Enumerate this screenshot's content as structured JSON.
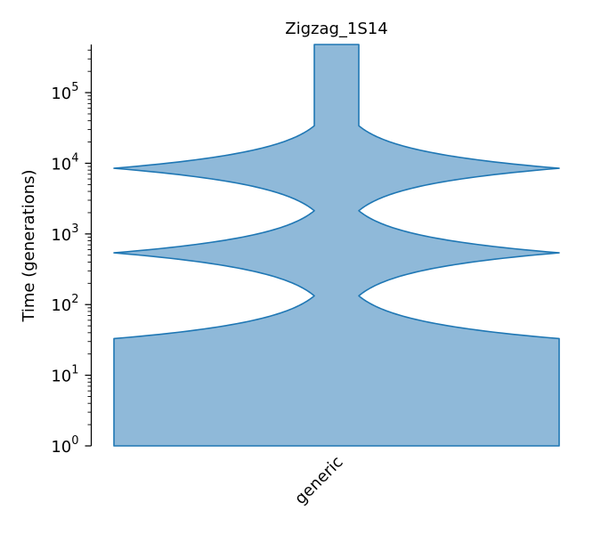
{
  "chart_data": {
    "type": "area",
    "title": "Zigzag_1S14",
    "ylabel": "Time (generations)",
    "xlabel": "",
    "categories": [
      "generic"
    ],
    "y_scale": "log",
    "ylim": [
      1,
      480000
    ],
    "y_ticks": [
      {
        "value": 1,
        "base": "10",
        "exp": "0"
      },
      {
        "value": 10,
        "base": "10",
        "exp": "1"
      },
      {
        "value": 100,
        "base": "10",
        "exp": "2"
      },
      {
        "value": 1000,
        "base": "10",
        "exp": "3"
      },
      {
        "value": 10000,
        "base": "10",
        "exp": "4"
      },
      {
        "value": 100000,
        "base": "10",
        "exp": "5"
      }
    ],
    "series": [
      {
        "color": "#1f77b4",
        "fill": "#8fb9d9",
        "width_profile": [
          {
            "time": 1,
            "width": 1.0
          },
          {
            "time": 33,
            "width": 1.0
          },
          {
            "time": 133,
            "width": 0.1
          },
          {
            "time": 540,
            "width": 1.0
          },
          {
            "time": 2130,
            "width": 0.1
          },
          {
            "time": 8500,
            "width": 1.0
          },
          {
            "time": 34000,
            "width": 0.1
          },
          {
            "time": 480000,
            "width": 0.1
          }
        ]
      }
    ],
    "grid": false,
    "legend": "none"
  }
}
